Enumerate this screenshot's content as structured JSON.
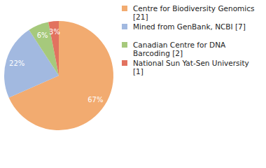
{
  "chart_data": {
    "type": "pie",
    "categories": [
      "Centre for Biodiversity Genomics [21]",
      "Mined from GenBank, NCBI [7]",
      "Canadian Centre for DNA Barcoding [2]",
      "National Sun Yat-Sen University [1]"
    ],
    "values": [
      67,
      22,
      6,
      3
    ],
    "value_labels": [
      "67%",
      "22%",
      "6%",
      "3%"
    ],
    "colors": [
      "#f2ab70",
      "#a2b9e0",
      "#a6c97c",
      "#e2725f"
    ],
    "data_labels": true,
    "legend": "right"
  }
}
